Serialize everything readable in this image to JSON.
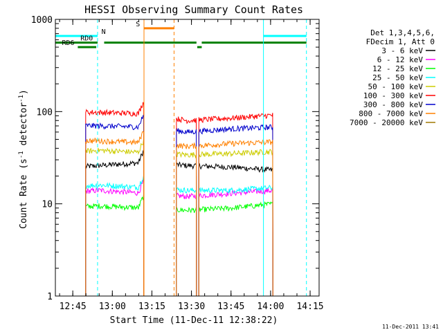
{
  "chart_data": {
    "type": "line",
    "title": "HESSI Observing Summary Count Rates",
    "xlabel": "Start Time (11-Dec-11 12:38:22)",
    "ylabel_main": "Count Rate (s",
    "ylabel_sup1": "-1",
    "ylabel_mid": " detector",
    "ylabel_sup2": "-1",
    "ylabel_end": ")",
    "x_unit": "minutes after 12:38:22",
    "xlim": [
      0,
      100
    ],
    "ylim": [
      1,
      1000
    ],
    "yscale": "log",
    "x_ticks": [
      {
        "value": 6.6,
        "label": "12:45"
      },
      {
        "value": 21.6,
        "label": "13:00"
      },
      {
        "value": 36.6,
        "label": "13:15"
      },
      {
        "value": 51.6,
        "label": "13:30"
      },
      {
        "value": 66.6,
        "label": "13:45"
      },
      {
        "value": 81.6,
        "label": "14:00"
      },
      {
        "value": 96.6,
        "label": "14:15"
      }
    ],
    "y_ticks": [
      {
        "value": 1,
        "label": "1"
      },
      {
        "value": 10,
        "label": "10"
      },
      {
        "value": 100,
        "label": "100"
      },
      {
        "value": 1000,
        "label": "1000"
      }
    ],
    "legend": {
      "placement": "right",
      "header": [
        "Det 1,3,4,5,6,",
        "FDecim 1, Att 0"
      ],
      "entries": [
        {
          "label": "3 - 6 keV",
          "color": "#000000"
        },
        {
          "label": "6 - 12 keV",
          "color": "#ff00ff"
        },
        {
          "label": "12 - 25 keV",
          "color": "#00ff00"
        },
        {
          "label": "25 - 50 keV",
          "color": "#00ffff"
        },
        {
          "label": "50 - 100 keV",
          "color": "#cccc00"
        },
        {
          "label": "100 - 300 keV",
          "color": "#ff0000"
        },
        {
          "label": "300 - 800 keV",
          "color": "#0000cc"
        },
        {
          "label": "800 - 7000 keV",
          "color": "#ff8000"
        },
        {
          "label": "7000 - 20000 keV",
          "color": "#a07800"
        }
      ]
    },
    "segments": [
      {
        "start": 11.5,
        "end": 33.5,
        "end_level_factor": 1.35
      },
      {
        "start": 45.9,
        "end": 53.5,
        "end_level_factor": 1.0
      },
      {
        "start": 54.4,
        "end": 82.5,
        "end_level_factor": 1.0
      }
    ],
    "series": [
      {
        "name": "3 - 6 keV",
        "color": "#000000",
        "levels": [
          24,
          26,
          28,
          26,
          25,
          23,
          22
        ]
      },
      {
        "name": "6 - 12 keV",
        "color": "#ff00ff",
        "levels": [
          13,
          14,
          13,
          12,
          13,
          14,
          13
        ]
      },
      {
        "name": "12 - 25 keV",
        "color": "#00ff00",
        "levels": [
          9,
          9.5,
          9,
          8.5,
          9,
          10,
          9
        ]
      },
      {
        "name": "25 - 50 keV",
        "color": "#00ffff",
        "levels": [
          15,
          16,
          15,
          14,
          14,
          15,
          14
        ]
      },
      {
        "name": "50 - 100 keV",
        "color": "#cccc00",
        "levels": [
          35,
          38,
          36,
          34,
          35,
          37,
          34
        ]
      },
      {
        "name": "100 - 300 keV",
        "color": "#ff0000",
        "levels": [
          100,
          98,
          95,
          80,
          85,
          92,
          83
        ]
      },
      {
        "name": "300 - 800 keV",
        "color": "#0000cc",
        "levels": [
          72,
          70,
          68,
          60,
          65,
          68,
          60
        ]
      },
      {
        "name": "800 - 7000 keV",
        "color": "#ff8000",
        "levels": [
          50,
          48,
          46,
          42,
          45,
          47,
          42
        ]
      },
      {
        "name": "7000 - 20000 keV",
        "color": "#a07800",
        "levels": []
      }
    ],
    "vlines": [
      {
        "x": 0,
        "color": "#00ffff",
        "style": "solid"
      },
      {
        "x": 16.0,
        "color": "#00ffff",
        "style": "dashed"
      },
      {
        "x": 33.6,
        "color": "#ff8000",
        "style": "solid"
      },
      {
        "x": 45.0,
        "color": "#ff8000",
        "style": "dashed"
      },
      {
        "x": 78.9,
        "color": "#00ffff",
        "style": "solid"
      },
      {
        "x": 95.2,
        "color": "#00ffff",
        "style": "dashed"
      }
    ],
    "flag_bars": [
      {
        "label": "",
        "color": "#00ffff",
        "y": 660,
        "ranges": [
          [
            0,
            16.0
          ],
          [
            78.9,
            95.2
          ]
        ]
      },
      {
        "label": "N",
        "color": "#00ffff",
        "y": 660,
        "label_x": 17.5,
        "ranges": []
      },
      {
        "label": "S",
        "color": "#ff8000",
        "y": 800,
        "label_x": 30.5,
        "ranges": [
          [
            33.6,
            45.0
          ]
        ]
      },
      {
        "label": "RD0",
        "color": "#008000",
        "y": 560,
        "label_x": 9.5,
        "ranges": [
          [
            0,
            16.0
          ],
          [
            18.5,
            53.5
          ],
          [
            55.5,
            95.2
          ]
        ]
      },
      {
        "label": "RD6",
        "color": "#008000",
        "y": 500,
        "label_x": 2.5,
        "ranges": [
          [
            8.5,
            15.5
          ],
          [
            53.8,
            55.5
          ]
        ]
      }
    ]
  },
  "footer": {
    "timestamp": "11-Dec-2011 13:41"
  }
}
